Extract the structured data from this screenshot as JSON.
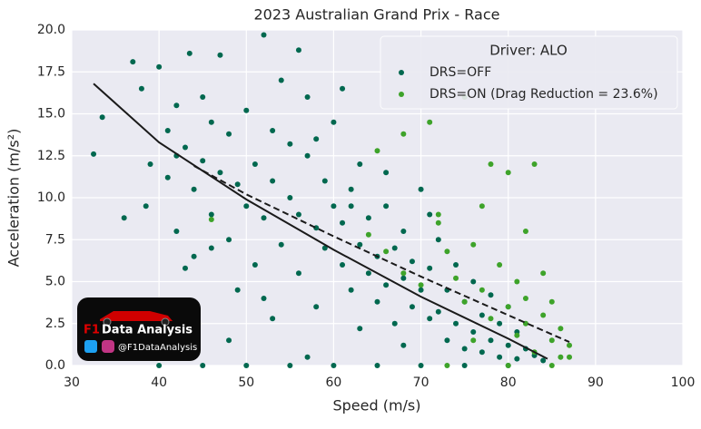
{
  "chart_data": {
    "type": "scatter",
    "title": "2023 Australian Grand Prix - Race",
    "xlabel": "Speed (m/s)",
    "ylabel": "Acceleration (m/s²)",
    "xlim": [
      30,
      100
    ],
    "xticks": [
      30,
      40,
      50,
      60,
      70,
      80,
      90,
      100
    ],
    "ylim": [
      0,
      20
    ],
    "yticks": [
      {
        "value": 0,
        "label": "0.0"
      },
      {
        "value": 2.5,
        "label": "2.5"
      },
      {
        "value": 5,
        "label": "5.0"
      },
      {
        "value": 7.5,
        "label": "7.5"
      },
      {
        "value": 10,
        "label": "10.0"
      },
      {
        "value": 12.5,
        "label": "12.5"
      },
      {
        "value": 15,
        "label": "15.0"
      },
      {
        "value": 17.5,
        "label": "17.5"
      },
      {
        "value": 20,
        "label": "20.0"
      }
    ],
    "grid": true,
    "legend": {
      "title": "Driver: ALO",
      "position": "upper right"
    },
    "series": [
      {
        "name": "DRS=OFF",
        "color": "#00684f",
        "x": [
          32.5,
          33.5,
          37,
          38,
          38.5,
          40,
          41,
          41,
          42,
          42,
          43,
          43.5,
          44,
          44,
          45,
          45,
          46,
          46,
          47,
          47,
          48,
          48,
          49,
          49,
          50,
          50,
          51,
          51,
          52,
          52,
          53,
          53,
          54,
          54,
          55,
          55,
          56,
          56,
          57,
          57,
          58,
          58,
          59,
          59,
          60,
          60,
          61,
          61,
          62,
          62,
          63,
          63,
          64,
          64,
          65,
          65,
          66,
          66,
          67,
          67,
          68,
          68,
          69,
          69,
          70,
          70,
          71,
          71,
          72,
          72,
          73,
          73,
          74,
          74,
          75,
          75,
          76,
          76,
          77,
          77,
          78,
          78,
          79,
          79,
          80,
          80,
          81,
          81,
          82,
          83,
          84,
          40,
          45,
          50,
          55,
          60,
          65,
          70,
          75,
          80,
          57,
          48,
          53,
          36,
          42,
          46,
          39,
          58,
          62,
          66,
          71,
          43,
          52,
          63,
          68,
          56,
          61
        ],
        "values": [
          12.6,
          14.8,
          18.1,
          16.5,
          9.5,
          17.8,
          14.0,
          11.2,
          15.5,
          8.0,
          13.0,
          18.6,
          10.5,
          6.5,
          16.0,
          12.2,
          9.0,
          14.5,
          11.5,
          18.5,
          7.5,
          13.8,
          10.8,
          4.5,
          15.2,
          9.5,
          12.0,
          6.0,
          19.7,
          8.8,
          14.0,
          11.0,
          17.0,
          7.2,
          10.0,
          13.2,
          5.5,
          9.0,
          12.5,
          16.0,
          8.2,
          3.5,
          11.0,
          7.0,
          9.5,
          14.5,
          6.0,
          8.5,
          10.5,
          4.5,
          7.2,
          12.0,
          5.5,
          8.8,
          3.8,
          6.5,
          9.5,
          4.8,
          7.0,
          2.5,
          5.2,
          8.0,
          3.5,
          6.2,
          4.5,
          10.5,
          2.8,
          5.8,
          3.2,
          7.5,
          1.5,
          4.5,
          2.5,
          6.0,
          1.0,
          3.8,
          2.0,
          5.0,
          0.8,
          3.0,
          1.5,
          4.2,
          0.5,
          2.5,
          1.2,
          3.5,
          0.4,
          2.0,
          1.0,
          0.6,
          0.3,
          0,
          0,
          0,
          0,
          0,
          0,
          0,
          0,
          0,
          0.5,
          1.5,
          2.8,
          8.8,
          12.5,
          7.0,
          12.0,
          13.5,
          9.5,
          11.5,
          9.0,
          5.8,
          4.0,
          2.2,
          1.2,
          18.8,
          16.5
        ]
      },
      {
        "name": "DRS=ON (Drag Reduction = 23.6%)",
        "color": "#3ea32a",
        "x": [
          46,
          64,
          66,
          68,
          70,
          71,
          72,
          73,
          74,
          75,
          76,
          76,
          77,
          78,
          78,
          79,
          80,
          80,
          81,
          81,
          82,
          82,
          83,
          83,
          84,
          84,
          85,
          85,
          86,
          86,
          87,
          87,
          75,
          68,
          72,
          65,
          73,
          80,
          85,
          77,
          82
        ],
        "values": [
          8.7,
          7.8,
          6.8,
          5.5,
          4.8,
          14.5,
          9.0,
          6.8,
          5.2,
          3.8,
          7.2,
          1.5,
          4.5,
          2.8,
          12.0,
          6.0,
          3.5,
          11.5,
          5.0,
          1.8,
          2.5,
          4.0,
          12.0,
          0.8,
          3.0,
          5.5,
          1.5,
          3.8,
          0.5,
          2.2,
          0.5,
          1.2,
          16.0,
          13.8,
          8.5,
          12.8,
          0,
          0,
          0,
          9.5,
          8.0
        ]
      }
    ],
    "fits": [
      {
        "style": "solid",
        "color": "#1a1a1a",
        "x": [
          32.5,
          40,
          50,
          60,
          70,
          80,
          84.5
        ],
        "values": [
          16.8,
          13.3,
          9.9,
          6.9,
          4.1,
          1.6,
          0.4
        ]
      },
      {
        "style": "dashed",
        "color": "#1a1a1a",
        "x": [
          44,
          50,
          60,
          70,
          80,
          87
        ],
        "values": [
          11.9,
          10.2,
          7.7,
          5.3,
          3.0,
          1.4
        ]
      }
    ]
  },
  "logo": {
    "title": "Data Analysis",
    "mark": "F1",
    "handle": "@F1DataAnalysis"
  }
}
